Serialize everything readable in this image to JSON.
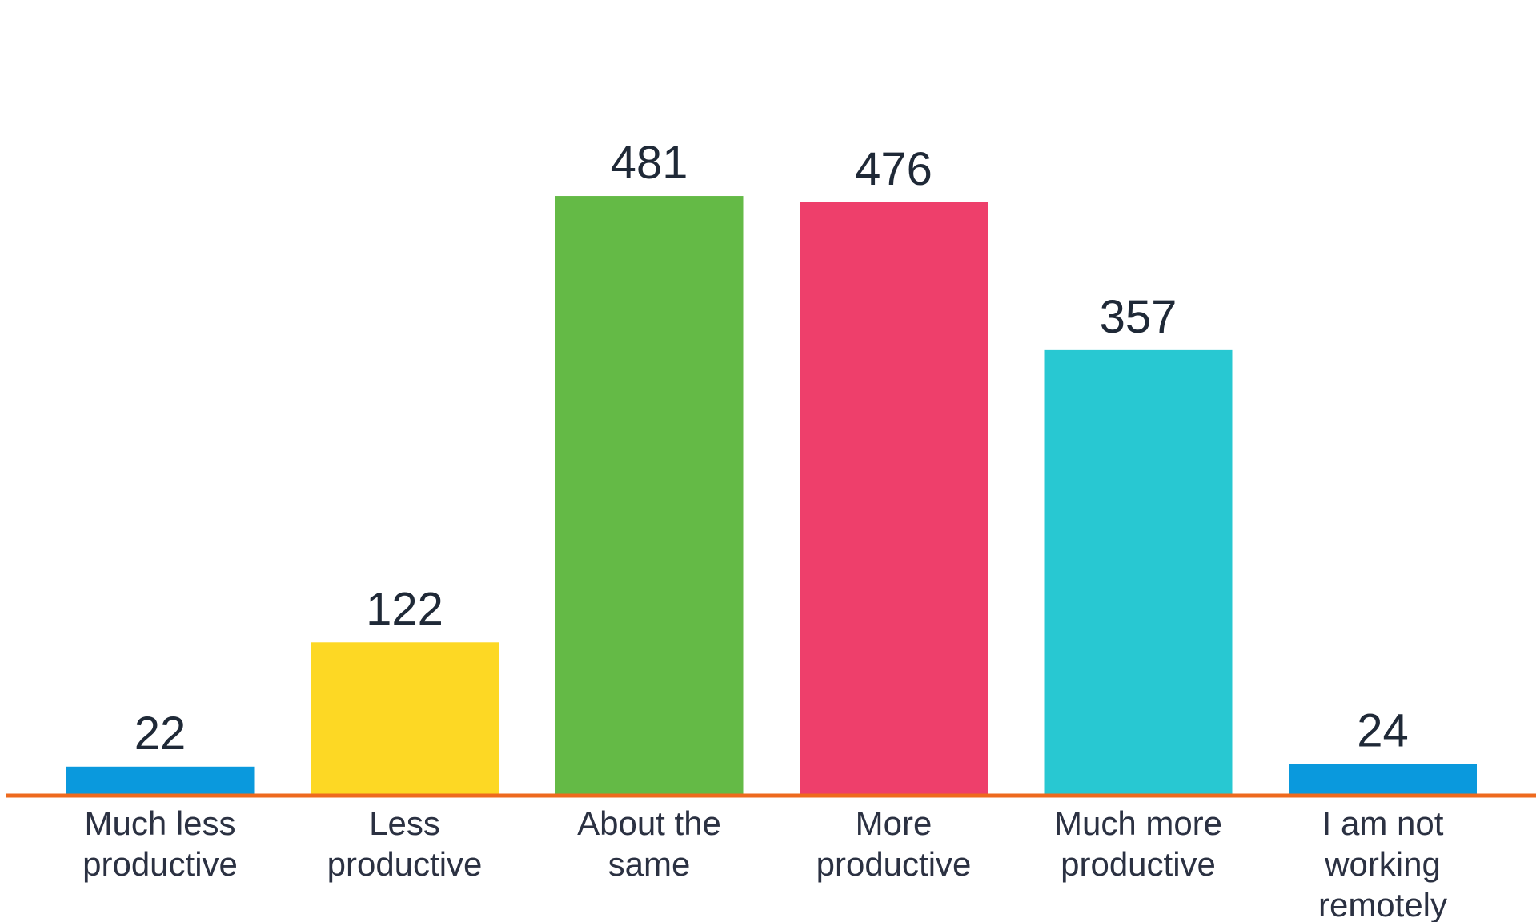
{
  "chart_data": {
    "type": "bar",
    "categories": [
      [
        "Much less",
        "productive"
      ],
      [
        "Less",
        "productive"
      ],
      [
        "About the",
        "same"
      ],
      [
        "More",
        "productive"
      ],
      [
        "Much more",
        "productive"
      ],
      [
        "I am not",
        "working",
        "remotely"
      ]
    ],
    "values": [
      22,
      122,
      481,
      476,
      357,
      24
    ],
    "colors": [
      "#0a99dd",
      "#fdd824",
      "#64ba46",
      "#ee3f6b",
      "#28c8d2",
      "#0a99dd"
    ],
    "axis_color": "#ee6a1e",
    "title": "",
    "xlabel": "",
    "ylabel": "",
    "ylim": [
      0,
      500
    ],
    "grid": false,
    "legend": "none"
  }
}
